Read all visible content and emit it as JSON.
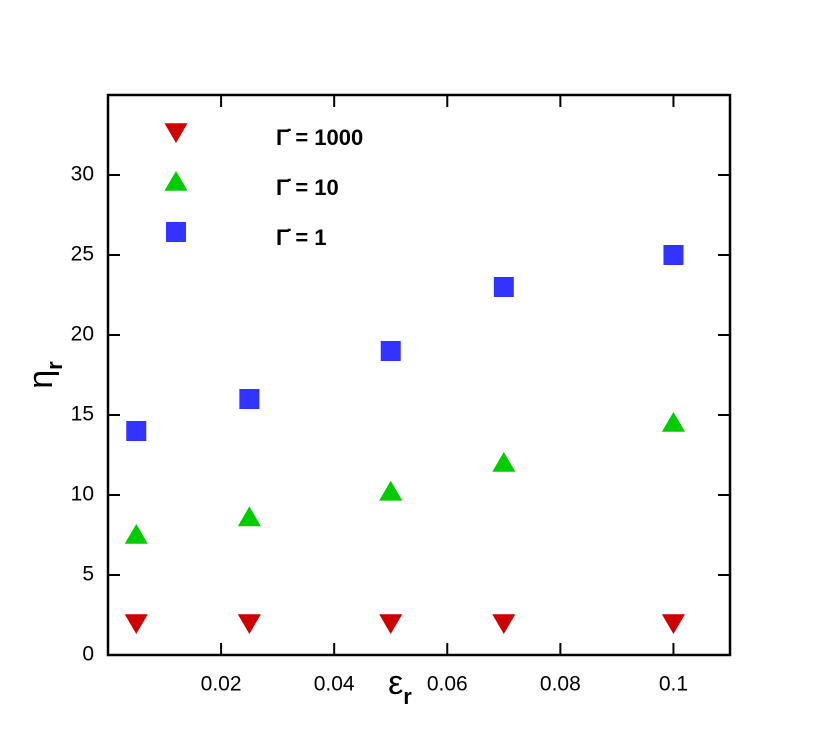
{
  "chart_data": {
    "type": "scatter",
    "x_label": "ε",
    "x_label_subscript": "r",
    "y_label": "η",
    "y_label_subscript": "r",
    "xlim": [
      0,
      0.11
    ],
    "xticks": [
      0.02,
      0.04,
      0.06,
      0.08,
      0.1
    ],
    "ylim": [
      0,
      35
    ],
    "yticks": [
      0,
      5,
      10,
      15,
      20,
      25,
      30
    ],
    "legend": "upper left",
    "series": [
      {
        "name": "Γ̇ = 1000",
        "color": "#cc0000",
        "marker": "triangle-down",
        "x": [
          0.005,
          0.025,
          0.05,
          0.07,
          0.1
        ],
        "values": [
          2,
          2,
          2,
          2,
          2
        ]
      },
      {
        "name": "Γ̇ = 10",
        "color": "#00cc00",
        "marker": "triangle-up",
        "x": [
          0.005,
          0.025,
          0.05,
          0.07,
          0.1
        ],
        "values": [
          7.5,
          8.6,
          10.2,
          12.0,
          14.5
        ]
      },
      {
        "name": "Γ̇ = 1",
        "color": "#3333ff",
        "marker": "square",
        "x": [
          0.005,
          0.025,
          0.05,
          0.07,
          0.1
        ],
        "values": [
          14,
          16,
          19,
          23,
          25
        ]
      }
    ]
  }
}
